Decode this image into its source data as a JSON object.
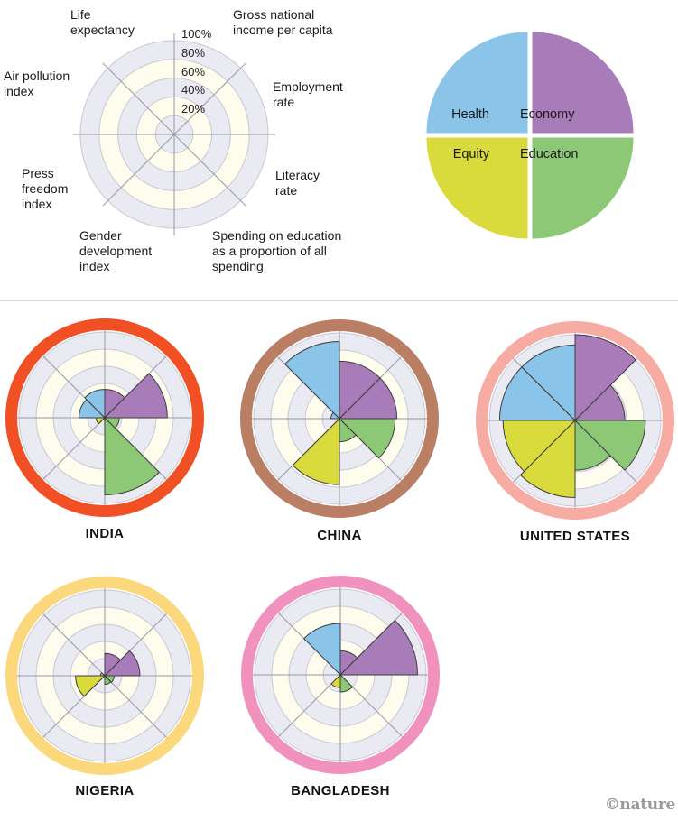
{
  "credit": "©nature",
  "colors": {
    "health_blue": "#8ac5e9",
    "economy_purple": "#a87cb9",
    "equity_yellow_green": "#d9db3d",
    "education_green": "#8dc877",
    "band_cream": "#fdfced",
    "band_gray": "#eaeaf2",
    "grid_ring": "#c8c8d2",
    "grid_spoke": "#9898a6",
    "wedge_outline": "#3c3c3c",
    "divider": "#d9d9d9",
    "credit_gray": "#9a9a9a"
  },
  "legend": {
    "axis_labels": {
      "life": "Life\nexpectancy",
      "gni": "Gross national\nincome per capita",
      "employment": "Employment\nrate",
      "literacy": "Literacy\nrate",
      "spending": "Spending on education\nas a proportion of all\nspending",
      "gender": "Gender\ndevelopment\nindex",
      "press": "Press\nfreedom\nindex",
      "air": "Air pollution\nindex"
    }
  },
  "chart_data": [
    {
      "type": "bar",
      "variant": "polar-sector small multiples (8 sectors per country, radius = % of scale)",
      "categories": [
        "Gross national income per capita",
        "Employment rate",
        "Literacy rate",
        "Spending on education as a proportion of all spending",
        "Gender development index",
        "Press freedom index",
        "Air pollution index",
        "Life expectancy"
      ],
      "category_groups": [
        "Economy",
        "Economy",
        "Education",
        "Education",
        "Equity",
        "Equity",
        "Health",
        "Health"
      ],
      "rlim": [
        0,
        100
      ],
      "grid": "rings at 20/40/60/80/100%",
      "tick_labels": [
        "100%",
        "80%",
        "60%",
        "40%",
        "20%"
      ],
      "series": [
        {
          "name": "INDIA",
          "ring_color": "#f05023",
          "values": [
            33,
            73,
            17,
            90,
            0,
            10,
            30,
            33
          ]
        },
        {
          "name": "CHINA",
          "ring_color": "#ba7e65",
          "values": [
            67,
            67,
            65,
            27,
            77,
            0,
            10,
            90
          ]
        },
        {
          "name": "UNITED STATES",
          "ring_color": "#f6aba3",
          "values": [
            100,
            58,
            82,
            58,
            90,
            84,
            88,
            88
          ]
        },
        {
          "name": "NIGERIA",
          "ring_color": "#fcd87d",
          "values": [
            26,
            41,
            11,
            10,
            0,
            34,
            5,
            0
          ]
        },
        {
          "name": "BANGLADESH",
          "ring_color": "#f092bd",
          "values": [
            28,
            90,
            0,
            20,
            15,
            0,
            0,
            60
          ]
        }
      ]
    },
    {
      "type": "pie",
      "title": "",
      "slices": [
        {
          "label": "Health",
          "value": 25,
          "color": "#8ac5e9",
          "position": "top-left"
        },
        {
          "label": "Economy",
          "value": 25,
          "color": "#a87cb9",
          "position": "top-right"
        },
        {
          "label": "Equity",
          "value": 25,
          "color": "#d9db3d",
          "position": "bottom-left"
        },
        {
          "label": "Education",
          "value": 25,
          "color": "#8dc877",
          "position": "bottom-right"
        }
      ]
    }
  ]
}
